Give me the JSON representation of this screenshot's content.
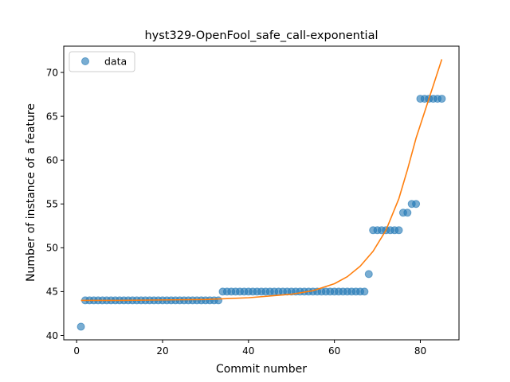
{
  "chart_data": {
    "type": "scatter",
    "title": "hyst329-OpenFool_safe_call-exponential",
    "xlabel": "Commit number",
    "ylabel": "Number of instance of a feature",
    "xlim": [
      -3,
      89
    ],
    "ylim": [
      39.5,
      73
    ],
    "xticks": [
      0,
      20,
      40,
      60,
      80
    ],
    "yticks": [
      40,
      45,
      50,
      55,
      60,
      65,
      70
    ],
    "grid": false,
    "legend": {
      "position": "upper-left",
      "entries": [
        "data"
      ]
    },
    "colors": {
      "data": "#1f77b4",
      "fit": "#ff7f0e"
    },
    "series": [
      {
        "name": "data",
        "kind": "scatter",
        "x": [
          1,
          2,
          3,
          4,
          5,
          6,
          7,
          8,
          9,
          10,
          11,
          12,
          13,
          14,
          15,
          16,
          17,
          18,
          19,
          20,
          21,
          22,
          23,
          24,
          25,
          26,
          27,
          28,
          29,
          30,
          31,
          32,
          33,
          34,
          35,
          36,
          37,
          38,
          39,
          40,
          41,
          42,
          43,
          44,
          45,
          46,
          47,
          48,
          49,
          50,
          51,
          52,
          53,
          54,
          55,
          56,
          57,
          58,
          59,
          60,
          61,
          62,
          63,
          64,
          65,
          66,
          67,
          68,
          69,
          70,
          71,
          72,
          73,
          74,
          75,
          76,
          77,
          78,
          79,
          80,
          81,
          82,
          83,
          84,
          85
        ],
        "y": [
          41,
          44,
          44,
          44,
          44,
          44,
          44,
          44,
          44,
          44,
          44,
          44,
          44,
          44,
          44,
          44,
          44,
          44,
          44,
          44,
          44,
          44,
          44,
          44,
          44,
          44,
          44,
          44,
          44,
          44,
          44,
          44,
          44,
          45,
          45,
          45,
          45,
          45,
          45,
          45,
          45,
          45,
          45,
          45,
          45,
          45,
          45,
          45,
          45,
          45,
          45,
          45,
          45,
          45,
          45,
          45,
          45,
          45,
          45,
          45,
          45,
          45,
          45,
          45,
          45,
          45,
          45,
          47,
          52,
          52,
          52,
          52,
          52,
          52,
          52,
          54,
          54,
          55,
          55,
          67,
          67,
          67,
          67,
          67,
          67
        ]
      },
      {
        "kind": "line",
        "x": [
          1,
          10,
          20,
          30,
          40,
          50,
          55,
          60,
          63,
          66,
          69,
          72,
          75,
          77,
          79,
          81,
          83,
          85
        ],
        "y": [
          44.0,
          44.0,
          44.05,
          44.1,
          44.3,
          44.7,
          45.1,
          45.9,
          46.7,
          47.9,
          49.6,
          52.0,
          55.6,
          58.9,
          62.5,
          65.5,
          68.5,
          71.5
        ]
      }
    ]
  }
}
